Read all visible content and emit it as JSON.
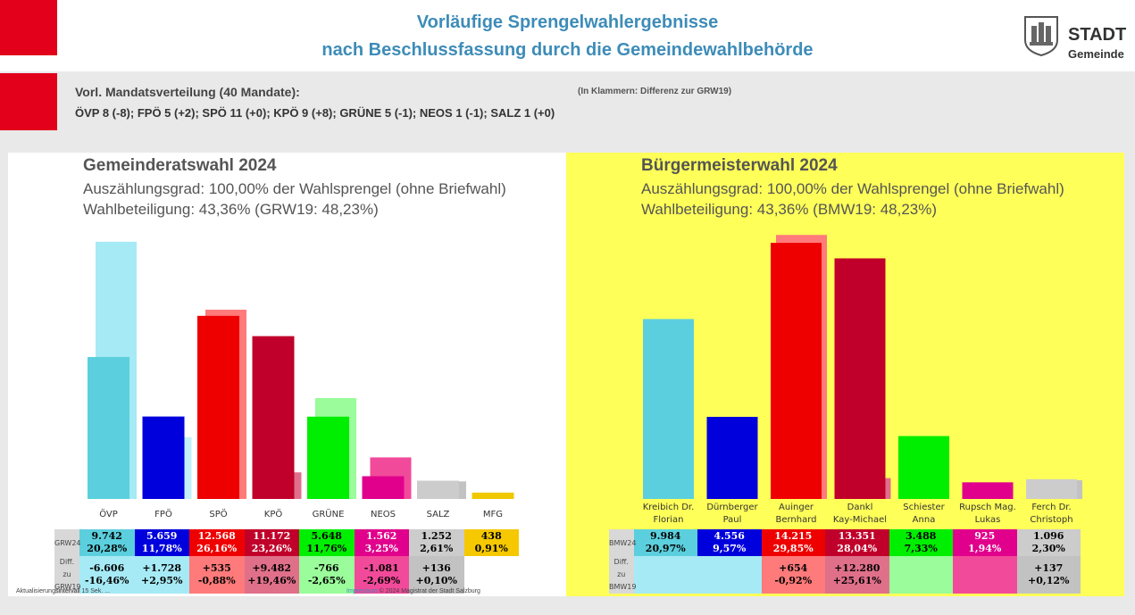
{
  "header": {
    "title": "Vorläufige Sprengelwahlergebnisse",
    "subtitle": "nach Beschlussfassung durch die Gemeindewahlbehörde",
    "logo_text": "STADT",
    "logo_text2": "Gemeinde"
  },
  "mandates": {
    "heading": "Vorl. Mandatsverteilung (40 Mandate):",
    "note": "(In Klammern: Differenz zur GRW19)",
    "line": "ÖVP 8 (-8); FPÖ 5 (+2); SPÖ 11 (+0); KPÖ 9 (+8); GRÜNE 5 (-1); NEOS 1 (-1); SALZ 1 (+0)"
  },
  "left": {
    "title": "Gemeinderatswahl 2024",
    "line1": "Auszählungsgrad: 100,00% der Wahlsprengel (ohne Briefwahl)",
    "line2": "Wahlbeteiligung:  43,36% (GRW19: 48,23%)",
    "row_labels": [
      "GRW24",
      "Diff. zu",
      "GRW19"
    ]
  },
  "right": {
    "title": "Bürgermeisterwahl 2024",
    "line1": "Auszählungsgrad: 100,00% der Wahlsprengel (ohne Briefwahl)",
    "line2": "Wahlbeteiligung:  43,36% (BMW19: 48,23%)",
    "row_labels": [
      "BMW24",
      "Diff. zu",
      "BMW19"
    ]
  },
  "chart_data": [
    {
      "type": "bar",
      "title": "Gemeinderatswahl 2024",
      "categories": [
        "ÖVP",
        "FPÖ",
        "SPÖ",
        "KPÖ",
        "GRÜNE",
        "NEOS",
        "SALZ",
        "MFG"
      ],
      "series": [
        {
          "name": "GRW24",
          "values": [
            20.28,
            11.78,
            26.16,
            23.26,
            11.76,
            3.25,
            2.61,
            0.91
          ]
        },
        {
          "name": "GRW19",
          "values": [
            36.74,
            8.83,
            27.04,
            3.8,
            14.41,
            5.94,
            2.51,
            null
          ]
        }
      ],
      "votes": [
        "9.742",
        "5.659",
        "12.568",
        "11.172",
        "5.648",
        "1.562",
        "1.252",
        "438"
      ],
      "pcts": [
        "20,28%",
        "11,78%",
        "26,16%",
        "23,26%",
        "11,76%",
        "3,25%",
        "2,61%",
        "0,91%"
      ],
      "diff_votes": [
        "-6.606",
        "+1.728",
        "+535",
        "+9.482",
        "-766",
        "-1.081",
        "+136",
        ""
      ],
      "diff_pcts": [
        "-16,46%",
        "+2,95%",
        "-0,88%",
        "+19,46%",
        "-2,65%",
        "-2,69%",
        "+0,10%",
        ""
      ],
      "colors": [
        "#5bcfdd",
        "#0000dd",
        "#ee0000",
        "#c0002a",
        "#00ee00",
        "#e0008c",
        "#cccccc",
        "#f0c800"
      ],
      "colors19": [
        "#a6eaf5",
        "#c2f0fb",
        "#ff7a7a",
        "#e0708a",
        "#9afc9a",
        "#f24a9a",
        "#c2c2c2",
        "#f0c800"
      ],
      "cellbg": [
        "#5bcfdd",
        "#0000dd",
        "#ee0000",
        "#c0002a",
        "#00ee00",
        "#e0008c",
        "#cccccc",
        "#f5c800"
      ],
      "celltx": [
        "#000000",
        "#ffffff",
        "#ffffff",
        "#ffffff",
        "#000000",
        "#ffffff",
        "#000000",
        "#000000"
      ],
      "diffbg": [
        "#a6eaf5",
        "#a6eaf5",
        "#ff7a7a",
        "#e0708a",
        "#9afc9a",
        "#f24a9a",
        "#c2c2c2",
        "#ffffff"
      ],
      "ylim": [
        0,
        38
      ]
    },
    {
      "type": "bar",
      "title": "Bürgermeisterwahl 2024",
      "categories": [
        "Kreibich Dr. Florian",
        "Dürnberger Paul",
        "Auinger Bernhard",
        "Dankl Kay-Michael",
        "Schiester Anna",
        "Rupsch Mag. Lukas",
        "Ferch Dr. Christoph"
      ],
      "series": [
        {
          "name": "BMW24",
          "values": [
            20.97,
            9.57,
            29.85,
            28.04,
            7.33,
            1.94,
            2.3
          ]
        },
        {
          "name": "BMW19",
          "values": [
            null,
            null,
            30.77,
            2.43,
            null,
            null,
            2.18
          ]
        }
      ],
      "votes": [
        "9.984",
        "4.556",
        "14.215",
        "13.351",
        "3.488",
        "925",
        "1.096"
      ],
      "pcts": [
        "20,97%",
        "9,57%",
        "29,85%",
        "28,04%",
        "7,33%",
        "1,94%",
        "2,30%"
      ],
      "diff_votes": [
        "",
        "",
        "+654",
        "+12.280",
        "",
        "",
        "+137"
      ],
      "diff_pcts": [
        "",
        "",
        "-0,92%",
        "+25,61%",
        "",
        "",
        "+0,12%"
      ],
      "colors": [
        "#5bcfdd",
        "#0000dd",
        "#ee0000",
        "#c0002a",
        "#00ee00",
        "#e0008c",
        "#cccccc"
      ],
      "colors19": [
        "#a6eaf5",
        "#a6eaf5",
        "#ff7a7a",
        "#e0708a",
        "#9afc9a",
        "#f24a9a",
        "#c2c2c2"
      ],
      "cellbg": [
        "#5bcfdd",
        "#0000dd",
        "#ee0000",
        "#c0002a",
        "#00ee00",
        "#e0008c",
        "#cccccc"
      ],
      "celltx": [
        "#000000",
        "#ffffff",
        "#ffffff",
        "#ffffff",
        "#000000",
        "#ffffff",
        "#000000"
      ],
      "diffbg": [
        "#a6eaf5",
        "#a6eaf5",
        "#ff7a7a",
        "#e0708a",
        "#9afc9a",
        "#f24a9a",
        "#c2c2c2"
      ],
      "ylim": [
        0,
        31
      ]
    }
  ],
  "footer": {
    "left": "Aktualisierungsintervall 15 Sek. ...",
    "impressum": "Impressum",
    "right": "© 2024 Magistrat der Stadt Salzburg"
  }
}
